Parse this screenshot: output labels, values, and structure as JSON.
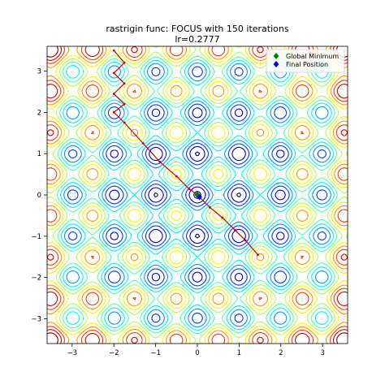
{
  "chart_data": {
    "type": "contour",
    "function": "rastrigin",
    "title": "rastrigin func: FOCUS with 150 iterations",
    "subtitle": "lr=0.2777",
    "xlabel": "",
    "ylabel": "",
    "xlim": [
      -3.6,
      3.6
    ],
    "ylim": [
      -3.6,
      3.6
    ],
    "xticks": [
      -3,
      -2,
      -1,
      0,
      1,
      2,
      3
    ],
    "yticks": [
      -3,
      -2,
      -1,
      0,
      1,
      2,
      3
    ],
    "grid": false,
    "colormap": "jet",
    "legend": {
      "placement": "top-right",
      "entries": [
        {
          "label": "Global Minimum",
          "marker": "diamond",
          "color": "#008000"
        },
        {
          "label": "Final Position",
          "marker": "diamond",
          "color": "#0000ff"
        }
      ]
    },
    "global_minimum": {
      "x": 0,
      "y": 0
    },
    "final_position": {
      "x": 0.05,
      "y": -0.05
    },
    "path": {
      "color": "#cc0000",
      "points": [
        [
          -2.0,
          3.5
        ],
        [
          -1.75,
          3.2
        ],
        [
          -2.0,
          2.95
        ],
        [
          -1.75,
          2.7
        ],
        [
          -2.0,
          2.45
        ],
        [
          -1.75,
          2.2
        ],
        [
          -2.0,
          2.0
        ],
        [
          -1.75,
          1.75
        ],
        [
          -1.3,
          1.25
        ],
        [
          -0.9,
          0.8
        ],
        [
          -0.5,
          0.45
        ],
        [
          -0.2,
          0.15
        ],
        [
          0.0,
          0.0
        ],
        [
          0.3,
          -0.3
        ],
        [
          0.6,
          -0.55
        ],
        [
          0.9,
          -0.85
        ],
        [
          1.15,
          -1.1
        ],
        [
          1.45,
          -1.45
        ]
      ]
    }
  }
}
